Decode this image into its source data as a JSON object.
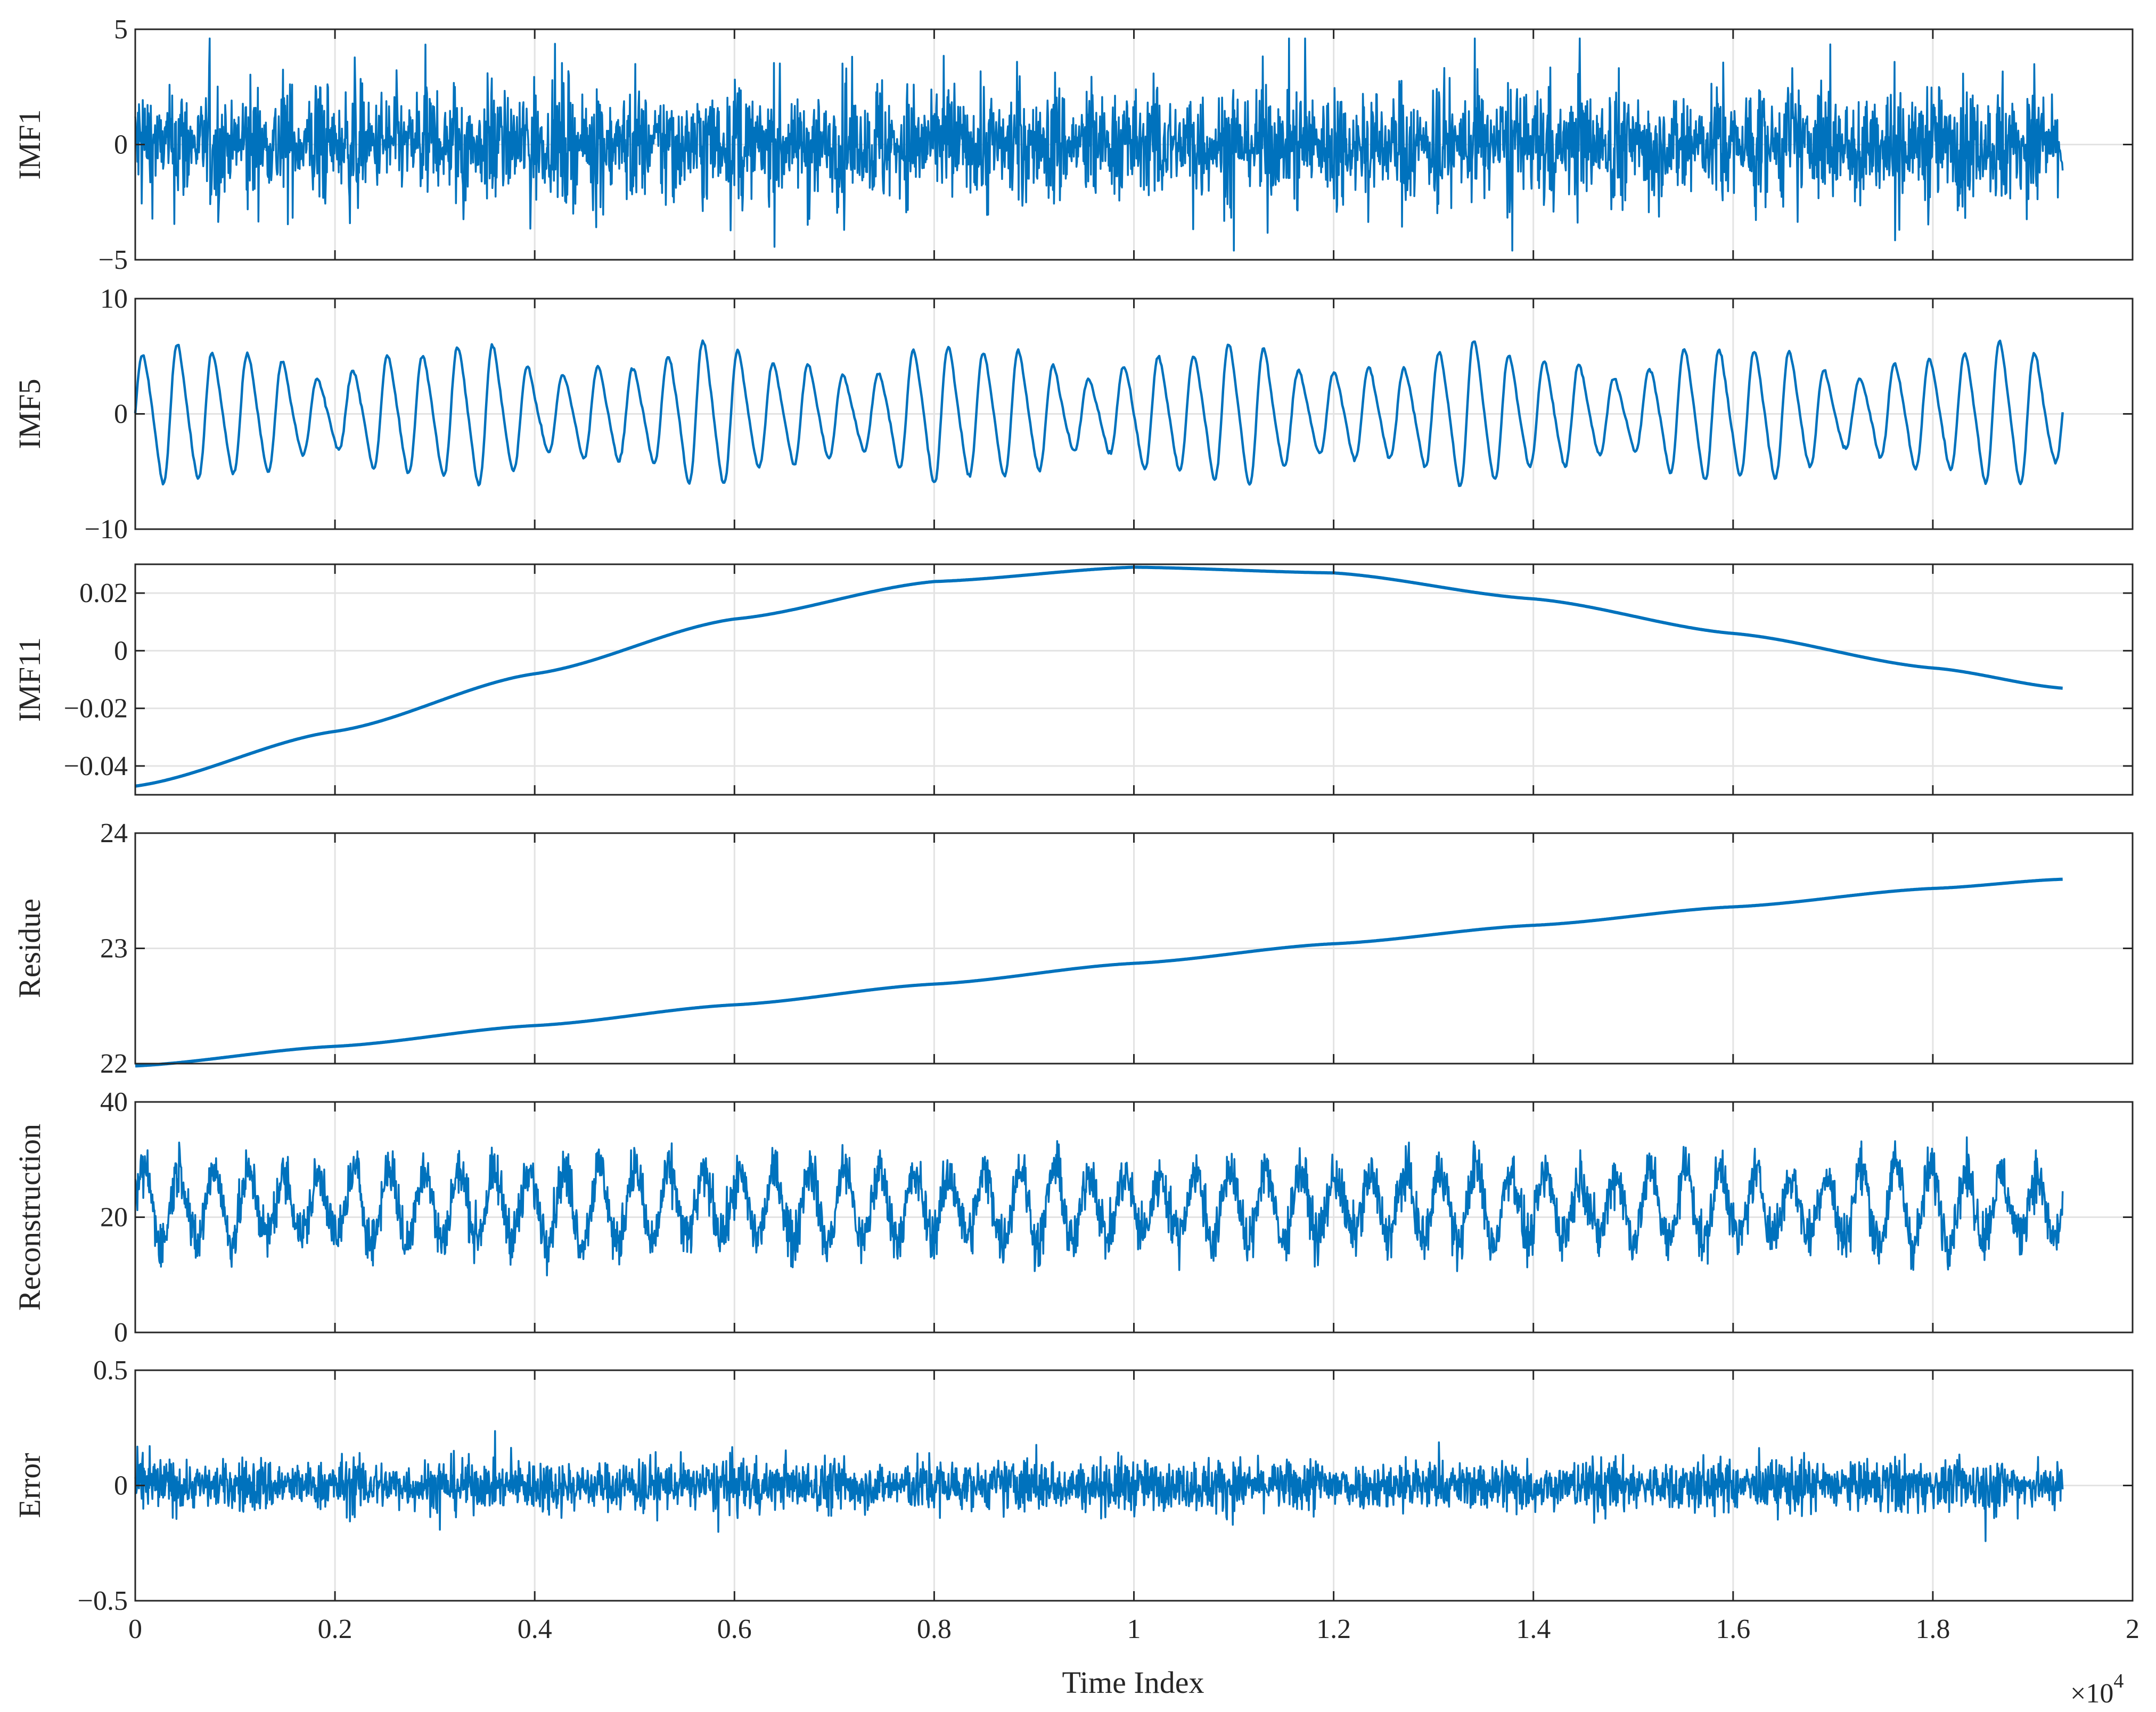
{
  "chart_data": {
    "type": "line",
    "layout": "stacked-subplots",
    "xlabel": "Time Index",
    "x_multiplier_label": "×10",
    "x_multiplier_exponent": "4",
    "xlim": [
      0,
      2
    ],
    "xticks": [
      0,
      0.2,
      0.4,
      0.6,
      0.8,
      1,
      1.2,
      1.4,
      1.6,
      1.8,
      2
    ],
    "xtick_labels": [
      "0",
      "0.2",
      "0.4",
      "0.6",
      "0.8",
      "1",
      "1.2",
      "1.4",
      "1.6",
      "1.8",
      "2"
    ],
    "series_extent": [
      0,
      1.93
    ],
    "grid": true,
    "line_color": "#0072BD",
    "panels": [
      {
        "ylabel": "IMF1",
        "ylim": [
          -5,
          5
        ],
        "yticks": [
          -5,
          0,
          5
        ],
        "ytick_labels": [
          "−5",
          "0",
          "5"
        ],
        "signal": {
          "kind": "noise",
          "amplitude": 2.2,
          "peak": 4.6,
          "cycles": 55,
          "envelope_mod": 0.35
        }
      },
      {
        "ylabel": "IMF5",
        "ylim": [
          -10,
          10
        ],
        "yticks": [
          -10,
          0,
          10
        ],
        "ytick_labels": [
          "−10",
          "0",
          "10"
        ],
        "signal": {
          "kind": "oscillation",
          "cycles": 55,
          "amplitude": 5.5,
          "offset": 0
        }
      },
      {
        "ylabel": "IMF11",
        "ylim": [
          -0.05,
          0.03
        ],
        "yticks": [
          -0.04,
          -0.02,
          0,
          0.02
        ],
        "ytick_labels": [
          "−0.04",
          "−0.02",
          "0",
          "0.02"
        ],
        "signal": {
          "kind": "smooth",
          "points": [
            [
              0,
              -0.047
            ],
            [
              0.2,
              -0.028
            ],
            [
              0.4,
              -0.008
            ],
            [
              0.6,
              0.011
            ],
            [
              0.8,
              0.024
            ],
            [
              1.0,
              0.029
            ],
            [
              1.2,
              0.027
            ],
            [
              1.4,
              0.018
            ],
            [
              1.6,
              0.006
            ],
            [
              1.8,
              -0.006
            ],
            [
              1.93,
              -0.013
            ]
          ]
        }
      },
      {
        "ylabel": "Residue",
        "ylim": [
          22,
          24
        ],
        "yticks": [
          22,
          23,
          24
        ],
        "ytick_labels": [
          "22",
          "23",
          "24"
        ],
        "signal": {
          "kind": "smooth",
          "points": [
            [
              0,
              21.98
            ],
            [
              0.2,
              22.15
            ],
            [
              0.4,
              22.33
            ],
            [
              0.6,
              22.51
            ],
            [
              0.8,
              22.69
            ],
            [
              1.0,
              22.87
            ],
            [
              1.2,
              23.04
            ],
            [
              1.4,
              23.2
            ],
            [
              1.6,
              23.36
            ],
            [
              1.8,
              23.52
            ],
            [
              1.93,
              23.6
            ]
          ]
        }
      },
      {
        "ylabel": "Reconstruction",
        "ylim": [
          0,
          40
        ],
        "yticks": [
          0,
          20,
          40
        ],
        "ytick_labels": [
          "0",
          "20",
          "40"
        ],
        "signal": {
          "kind": "oscillation-noise",
          "cycles": 55,
          "amplitude": 6.5,
          "offset": 22,
          "noise": 2.8
        }
      },
      {
        "ylabel": "Error",
        "ylim": [
          -0.5,
          0.5
        ],
        "yticks": [
          -0.5,
          0,
          0.5
        ],
        "ytick_labels": [
          "−0.5",
          "0",
          "0.5"
        ],
        "signal": {
          "kind": "noise",
          "amplitude": 0.1,
          "peak": 0.34,
          "cycles": 20,
          "envelope_mod": 0.15
        }
      }
    ]
  }
}
